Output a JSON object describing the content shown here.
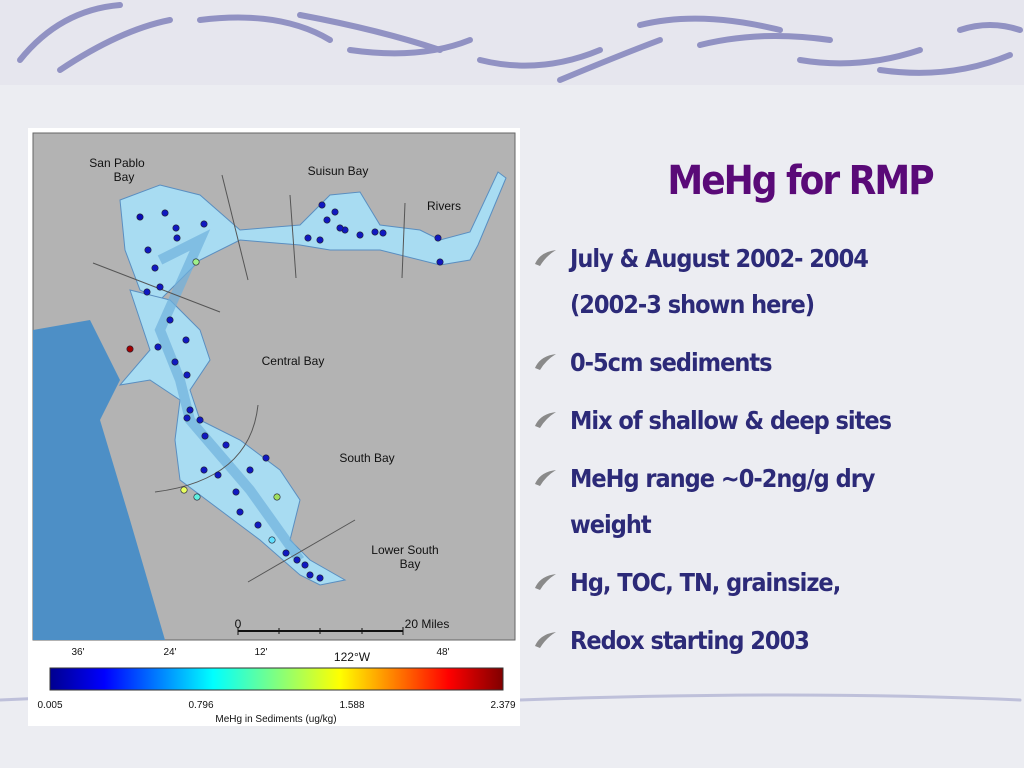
{
  "title": "MeHg for RMP",
  "bullets": [
    {
      "lines": [
        "July & August 2002- 2004",
        "(2002-3 shown here)"
      ]
    },
    {
      "lines": [
        "0-5cm sediments"
      ]
    },
    {
      "lines": [
        "Mix of shallow & deep sites"
      ]
    },
    {
      "lines": [
        "MeHg range ~0-2ng/g dry",
        "weight"
      ]
    },
    {
      "lines": [
        "Hg, TOC, TN, grainsize,"
      ]
    },
    {
      "lines": [
        "Redox starting 2003"
      ]
    }
  ],
  "map": {
    "labels": [
      {
        "lines": [
          "San Pablo",
          "Bay"
        ]
      },
      {
        "lines": [
          "Suisun Bay"
        ]
      },
      {
        "lines": [
          "Rivers"
        ]
      },
      {
        "lines": [
          "Central Bay"
        ]
      },
      {
        "lines": [
          "South Bay"
        ]
      },
      {
        "lines": [
          "Lower South",
          "Bay"
        ]
      }
    ],
    "scale": {
      "start": "0",
      "end": "20 Miles"
    },
    "longitudes": [
      "36'",
      "24'",
      "12'",
      "122°W",
      "48'"
    ],
    "colorbar": {
      "ticks": [
        "0.005",
        "0.796",
        "1.588",
        "2.379"
      ],
      "label": "MeHg in Sediments (ug/kg)"
    }
  }
}
